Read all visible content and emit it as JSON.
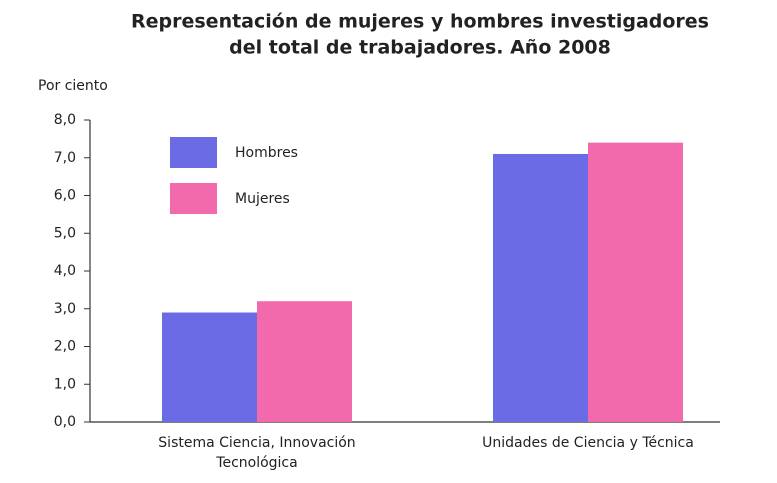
{
  "chart_data": {
    "type": "bar",
    "title": [
      "Representación de mujeres y hombres investigadores",
      "del total de trabajadores. Año 2008"
    ],
    "y_label": "Por ciento",
    "categories": [
      "Sistema Ciencia, Innovación Tecnológica",
      "Unidades de Ciencia y Técnica"
    ],
    "series": [
      {
        "name": "Hombres",
        "color": "#6b6be6",
        "values": [
          2.9,
          7.1
        ]
      },
      {
        "name": "Mujeres",
        "color": "#f26aab",
        "values": [
          3.2,
          7.4
        ]
      }
    ],
    "ylim": [
      0,
      8
    ],
    "yticks": [
      {
        "value": 0,
        "label": "0,0"
      },
      {
        "value": 1,
        "label": "1,0"
      },
      {
        "value": 2,
        "label": "2,0"
      },
      {
        "value": 3,
        "label": "3,0"
      },
      {
        "value": 4,
        "label": "4,0"
      },
      {
        "value": 5,
        "label": "5,0"
      },
      {
        "value": 6,
        "label": "6,0"
      },
      {
        "value": 7,
        "label": "7,0"
      },
      {
        "value": 8,
        "label": "8,0"
      }
    ],
    "legend": "upper left"
  }
}
